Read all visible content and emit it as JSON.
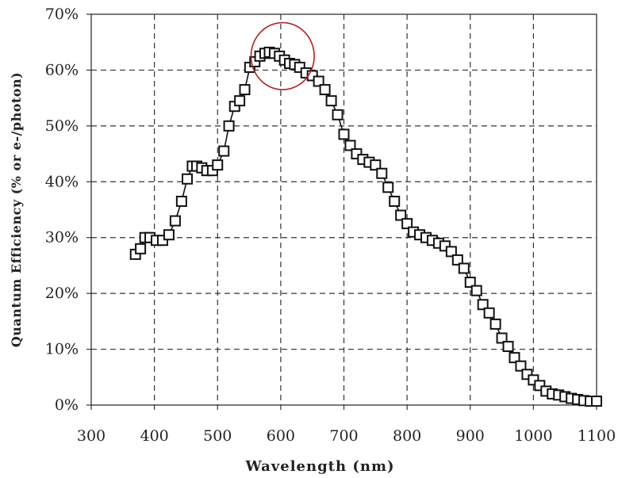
{
  "chart_data": {
    "type": "scatter",
    "title": "",
    "xlabel": "Wavelength (nm)",
    "ylabel": "Quantum Efficiency (% or e-/photon)",
    "xlim": [
      300,
      1100
    ],
    "ylim": [
      0,
      70
    ],
    "x_ticks": [
      300,
      400,
      500,
      600,
      700,
      800,
      900,
      1000,
      1100
    ],
    "x_tick_labels": [
      "300",
      "400",
      "500",
      "600",
      "700",
      "800",
      "900",
      "1000",
      "1100"
    ],
    "y_ticks": [
      0,
      10,
      20,
      30,
      40,
      50,
      60,
      70
    ],
    "y_tick_labels": [
      "0%",
      "10%",
      "20%",
      "30%",
      "40%",
      "50%",
      "60%",
      "70%"
    ],
    "grid": true,
    "grid_style": "dashed",
    "marker": "open-square",
    "line_color": "#111111",
    "annotation": {
      "shape": "ellipse",
      "color": "#b22222",
      "center_x": 603,
      "center_y": 62.5,
      "x_radius": 50,
      "y_radius": 6
    },
    "series": [
      {
        "x": [
          370,
          378,
          385,
          393,
          403,
          413,
          423,
          433,
          443,
          452,
          460,
          467,
          475,
          483,
          492,
          500,
          510,
          518,
          527,
          535,
          543,
          551,
          559,
          567,
          575,
          582,
          590,
          598,
          606,
          614,
          622,
          630,
          640,
          650,
          660,
          670,
          680,
          690,
          700,
          710,
          720,
          730,
          740,
          750,
          760,
          770,
          780,
          790,
          800,
          810,
          820,
          830,
          840,
          850,
          860,
          870,
          880,
          890,
          900,
          910,
          920,
          930,
          940,
          950,
          960,
          970,
          980,
          990,
          1000,
          1010,
          1020,
          1030,
          1040,
          1050,
          1060,
          1070,
          1080,
          1090,
          1100
        ],
        "y": [
          27.0,
          28.0,
          30.0,
          30.0,
          29.5,
          29.5,
          30.5,
          33.0,
          36.5,
          40.5,
          42.8,
          42.8,
          42.5,
          42.0,
          42.0,
          43.0,
          45.5,
          50.0,
          53.5,
          54.5,
          56.5,
          60.5,
          61.5,
          62.5,
          63.0,
          63.2,
          63.0,
          62.5,
          61.8,
          61.2,
          61.0,
          60.5,
          59.5,
          59.0,
          58.0,
          56.5,
          54.5,
          52.0,
          48.5,
          46.5,
          45.0,
          44.0,
          43.5,
          43.0,
          41.5,
          39.0,
          36.5,
          34.0,
          32.5,
          31.0,
          30.5,
          30.0,
          29.5,
          29.0,
          28.5,
          27.5,
          26.0,
          24.5,
          22.0,
          20.5,
          18.0,
          16.5,
          14.5,
          12.0,
          10.5,
          8.5,
          7.0,
          5.5,
          4.5,
          3.5,
          2.5,
          2.0,
          1.8,
          1.5,
          1.2,
          1.0,
          0.8,
          0.7,
          0.7
        ]
      }
    ]
  }
}
